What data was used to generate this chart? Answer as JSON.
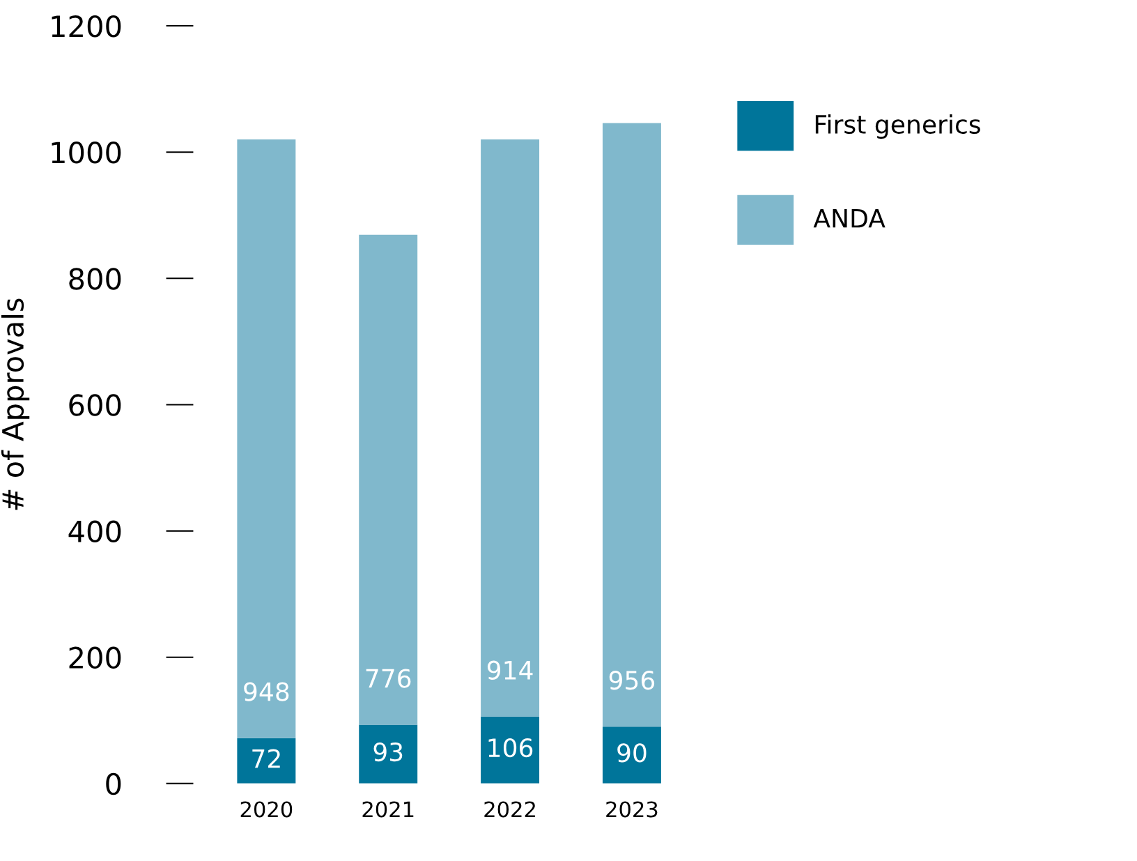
{
  "chart_data": {
    "type": "bar",
    "stacked": true,
    "ylabel": "# of Approvals",
    "categories": [
      "2020",
      "2021",
      "2022",
      "2023"
    ],
    "series": [
      {
        "name": "First generics",
        "color": "#00759a",
        "values": [
          72,
          93,
          106,
          90
        ]
      },
      {
        "name": "ANDA",
        "color": "#80b8cc",
        "values": [
          948,
          776,
          914,
          956
        ]
      }
    ],
    "ylim": [
      0,
      1200
    ],
    "yticks": [
      0,
      200,
      400,
      600,
      800,
      1000,
      1200
    ],
    "data_labels": true,
    "grid": false,
    "legend": "top right"
  }
}
